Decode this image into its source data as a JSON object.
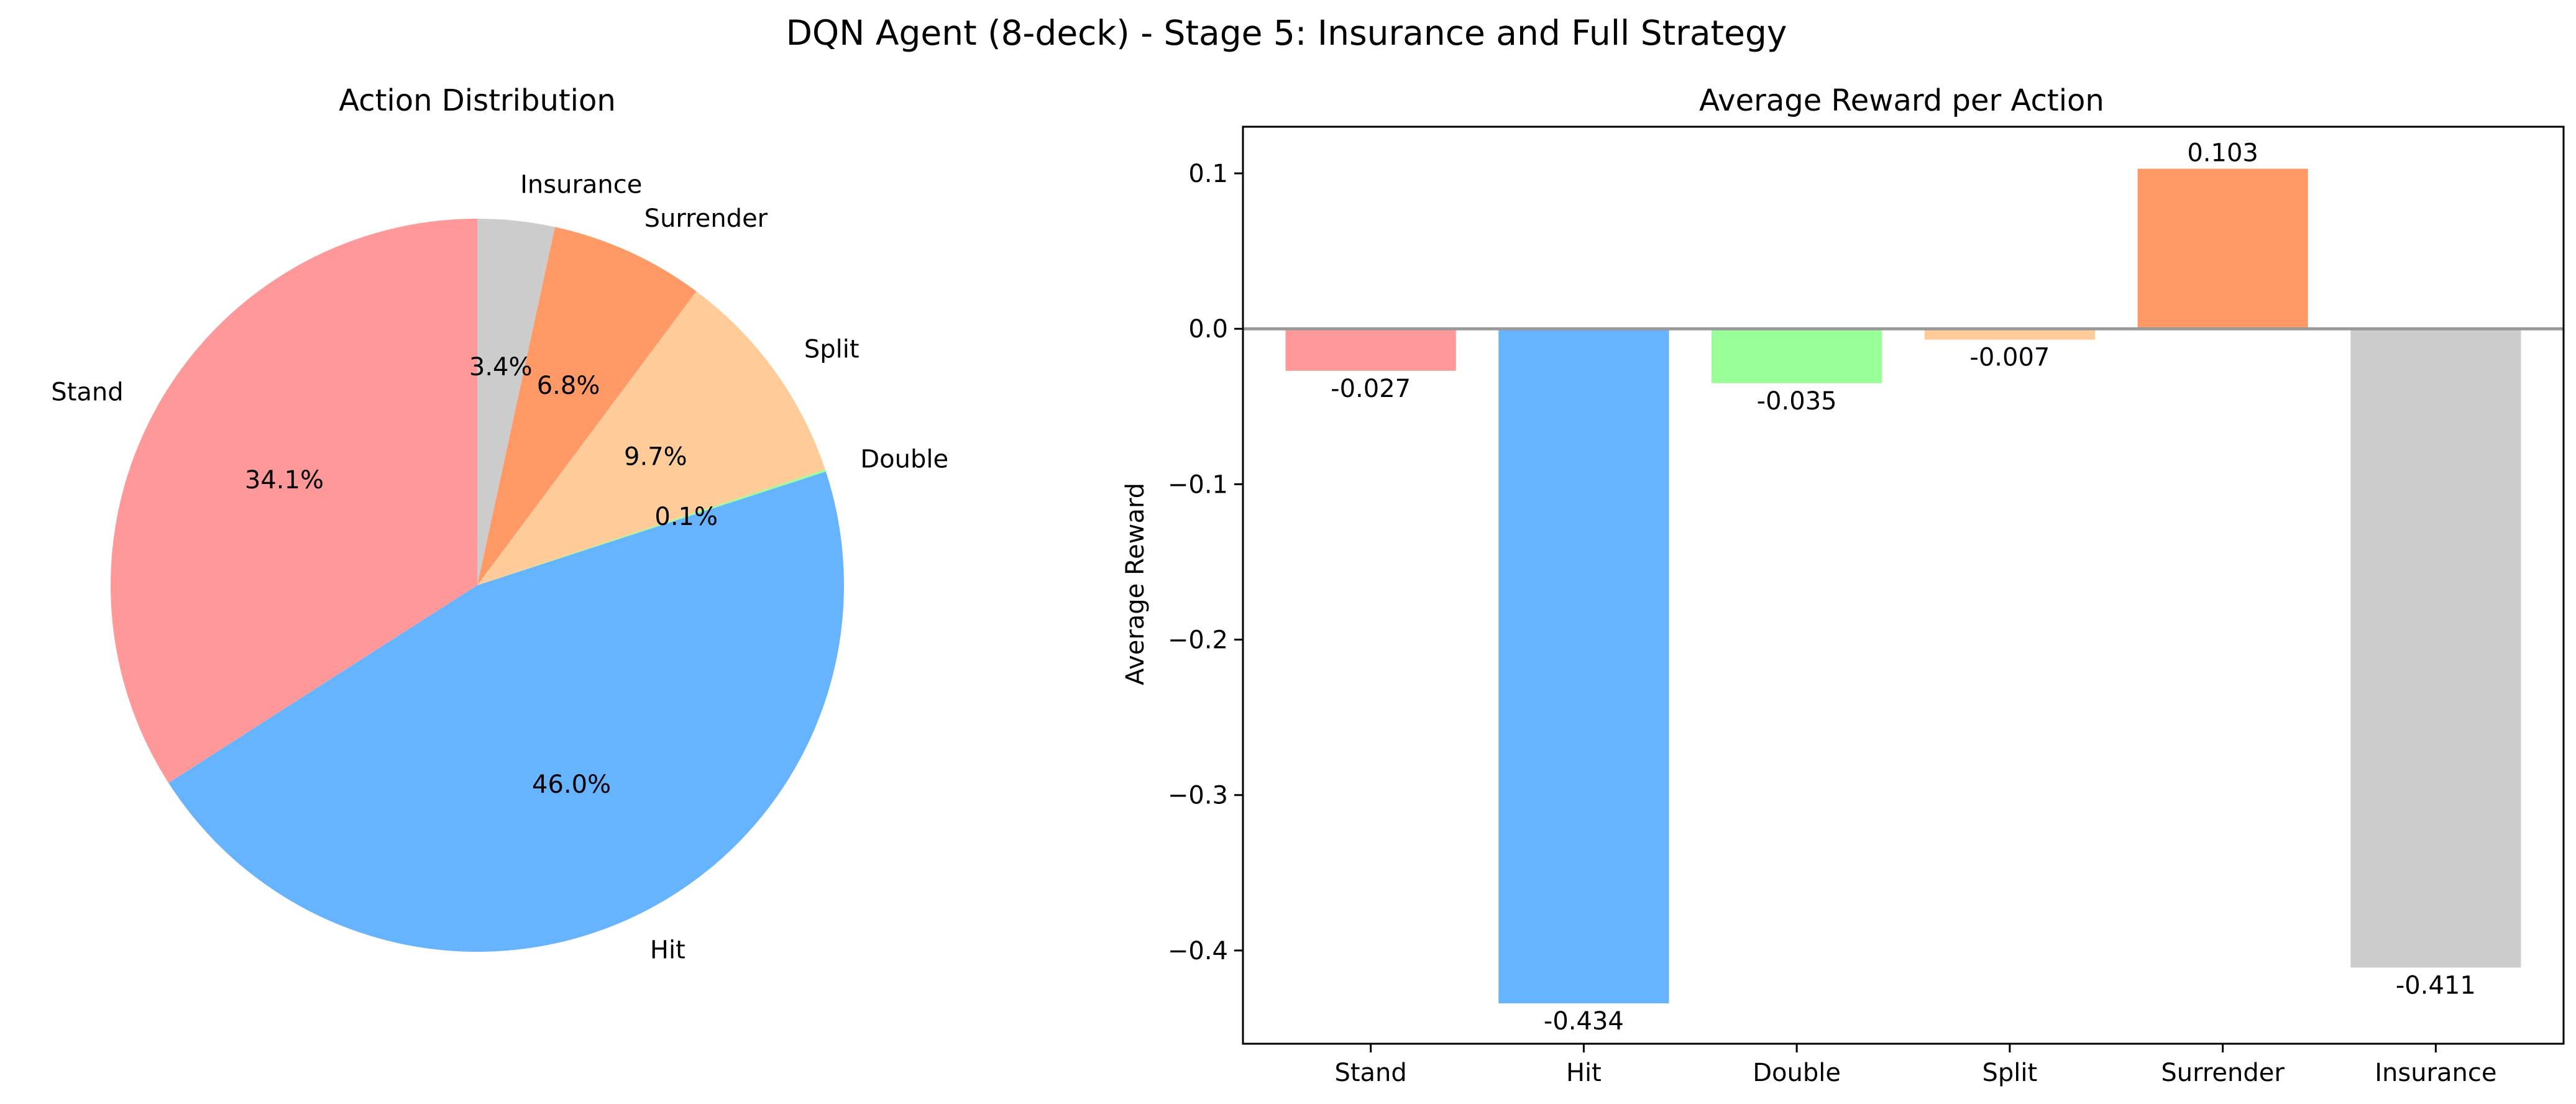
{
  "figure": {
    "title": "DQN Agent (8-deck) - Stage 5: Insurance and Full Strategy"
  },
  "chart_data": [
    {
      "type": "pie",
      "title": "Action Distribution",
      "start_angle_deg": 90,
      "direction": "counterclockwise",
      "slices": [
        {
          "label": "Stand",
          "value": 34.1,
          "pct_label": "34.1%",
          "color": "#ff9999"
        },
        {
          "label": "Hit",
          "value": 46.0,
          "pct_label": "46.0%",
          "color": "#66b3ff"
        },
        {
          "label": "Double",
          "value": 0.1,
          "pct_label": "0.1%",
          "color": "#99ff99"
        },
        {
          "label": "Split",
          "value": 9.7,
          "pct_label": "9.7%",
          "color": "#ffcc99"
        },
        {
          "label": "Surrender",
          "value": 6.8,
          "pct_label": "6.8%",
          "color": "#ff9966"
        },
        {
          "label": "Insurance",
          "value": 3.4,
          "pct_label": "3.4%",
          "color": "#cccccc"
        }
      ]
    },
    {
      "type": "bar",
      "title": "Average Reward per Action",
      "xlabel": "",
      "ylabel": "Average Reward",
      "ylim": [
        -0.46,
        0.13
      ],
      "yticks": [
        0.1,
        0.0,
        -0.1,
        -0.2,
        -0.3,
        -0.4
      ],
      "ytick_labels": [
        "0.1",
        "0.0",
        "−0.1",
        "−0.2",
        "−0.3",
        "−0.4"
      ],
      "zero_line": true,
      "grid": false,
      "categories": [
        "Stand",
        "Hit",
        "Double",
        "Split",
        "Surrender",
        "Insurance"
      ],
      "values": [
        -0.027,
        -0.434,
        -0.035,
        -0.007,
        0.103,
        -0.411
      ],
      "value_labels": [
        "-0.027",
        "-0.434",
        "-0.035",
        "-0.007",
        "0.103",
        "-0.411"
      ],
      "colors": [
        "#ff9999",
        "#66b3ff",
        "#99ff99",
        "#ffcc99",
        "#ff9966",
        "#cccccc"
      ]
    }
  ]
}
